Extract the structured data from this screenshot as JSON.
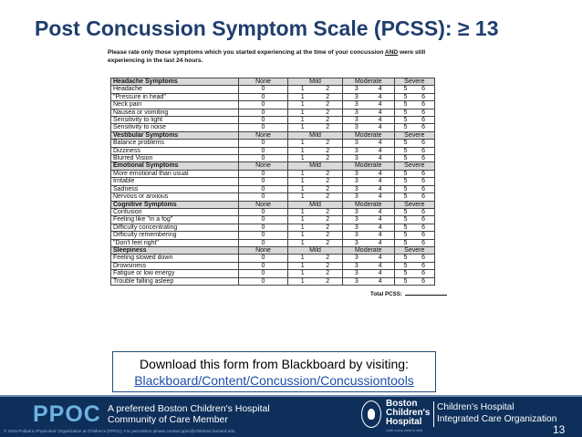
{
  "slide": {
    "title": "Post Concussion Symptom Scale (PCSS): ≥ 13",
    "page_number": "13"
  },
  "form": {
    "instructions_before": "Please rate only those symptoms which you started experiencing at the time of your concussion ",
    "instructions_and": "AND",
    "instructions_after": " were still experiencing in the last 24 hours.",
    "headers": {
      "none": "None",
      "mild": "Mild",
      "moderate": "Moderate",
      "severe": "Severe"
    },
    "scores": {
      "none": "0",
      "mild": [
        "1",
        "2"
      ],
      "moderate": [
        "3",
        "4"
      ],
      "severe": [
        "5",
        "6"
      ]
    },
    "sections": [
      {
        "title": "Headache Symptoms",
        "items": [
          "Headache",
          "\"Pressure in head\"",
          "Neck pain",
          "Nausea or vomiting",
          "Sensitivity to light",
          "Sensitivity to noise"
        ]
      },
      {
        "title": "Vestibular Symptoms",
        "items": [
          "Balance problems",
          "Dizziness",
          "Blurred Vision"
        ]
      },
      {
        "title": "Emotional Symptoms",
        "items": [
          "More emotional than usual",
          "Irritable",
          "Sadness",
          "Nervous or anxious"
        ]
      },
      {
        "title": "Cognitive Symptoms",
        "items": [
          "Confusion",
          "Feeling like \"in a fog\"",
          "Difficulty concentrating",
          "Difficulty remembering",
          "\"Don't feel right\""
        ]
      },
      {
        "title": "Sleepiness",
        "items": [
          "Feeling slowed down",
          "Drowsiness",
          "Fatigue or low energy",
          "Trouble falling asleep"
        ]
      }
    ],
    "total_label": "Total PCSS:"
  },
  "download": {
    "text": "Download this form from Blackboard by visiting:",
    "link": "Blackboard/Content/Concussion/Concussiontools"
  },
  "footer": {
    "logo": "PPOC",
    "tagline_line1": "A preferred Boston Children's Hospital",
    "tagline_line2": "Community of Care Member",
    "copyright": "© 2015 Pediatric Physicians' Organization at Children's (PPOC). For permission please contact ppoc@childrens.harvard.edu",
    "bch_line1": "Boston",
    "bch_line2": "Children's",
    "bch_line3": "Hospital",
    "bch_sub": "Until every child is well",
    "ico_line1": "Children's Hospital",
    "ico_line2": "Integrated Care Organization"
  },
  "colors": {
    "title": "#1f3d6e",
    "footer_bg": "#0d2f5a",
    "ppoc_logo": "#6fb1e0",
    "link": "#1f4fa8"
  }
}
